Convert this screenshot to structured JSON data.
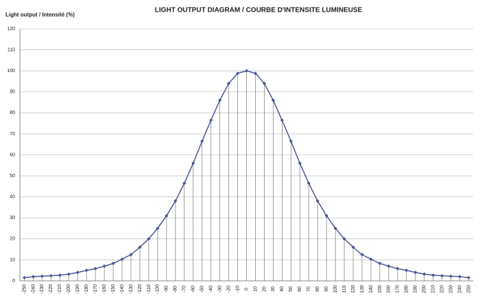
{
  "chart_data": {
    "type": "line",
    "title": "LIGHT OUTPUT DIAGRAM / COURBE D'INTENSITE LUMINEUSE",
    "y_label": "Light output / Intensité (%)",
    "categories": [
      "-250",
      "-240",
      "-230",
      "-220",
      "-210",
      "-200",
      "-190",
      "-180",
      "-170",
      "-160",
      "-150",
      "-140",
      "-130",
      "-120",
      "-110",
      "-100",
      "-90",
      "-80",
      "-70",
      "-60",
      "-50",
      "-40",
      "-30",
      "-20",
      "-10",
      "0",
      "10",
      "20",
      "30",
      "40",
      "50",
      "60",
      "70",
      "80",
      "90",
      "100",
      "110",
      "120",
      "130",
      "140",
      "150",
      "160",
      "170",
      "180",
      "190",
      "200",
      "210",
      "220",
      "230",
      "240",
      "250"
    ],
    "values": [
      1.5,
      2,
      2.2,
      2.4,
      2.7,
      3.2,
      4,
      5,
      5.8,
      7,
      8.3,
      10.3,
      12.5,
      16,
      20,
      25,
      31,
      38,
      46.5,
      56,
      66.5,
      76.5,
      86,
      94,
      98.8,
      100,
      98.8,
      94,
      86,
      76.5,
      66.5,
      56,
      46.5,
      38,
      31,
      25,
      20,
      16,
      12.5,
      10.3,
      8.3,
      7,
      5.8,
      5,
      4,
      3.2,
      2.7,
      2.4,
      2.2,
      2,
      1.5
    ],
    "color": "#4a5696",
    "drop_lines": true,
    "ylim": [
      0,
      120
    ],
    "yticks": [
      0,
      10,
      20,
      30,
      40,
      50,
      60,
      70,
      80,
      90,
      100,
      110,
      120
    ],
    "grid": true
  }
}
